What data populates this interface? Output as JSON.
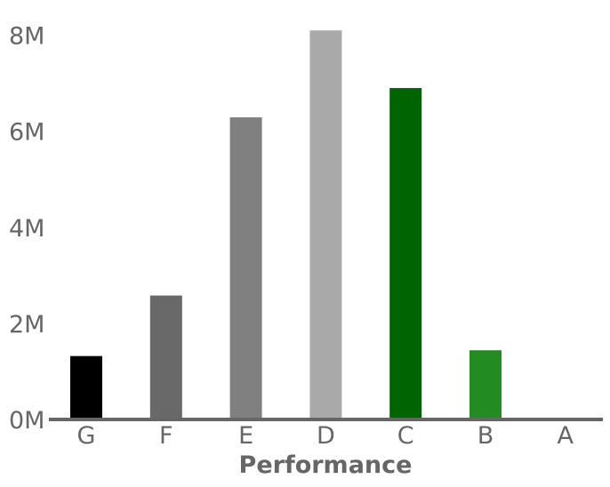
{
  "chart_data": {
    "type": "bar",
    "title": "",
    "xlabel": "Performance",
    "ylabel": "",
    "categories": [
      "G",
      "F",
      "E",
      "D",
      "C",
      "B",
      "A"
    ],
    "values": [
      1.32,
      2.58,
      6.29,
      8.1,
      6.9,
      1.44,
      0
    ],
    "value_unit": "M",
    "colors": [
      "#000000",
      "#696969",
      "#808080",
      "#a9a9a9",
      "#006400",
      "#228b22",
      "#32cd32"
    ],
    "ylim": [
      0,
      8.4
    ],
    "yticks": [
      0,
      2,
      4,
      6,
      8
    ],
    "ytick_labels": [
      "0M",
      "2M",
      "4M",
      "6M",
      "8M"
    ],
    "axis_color": "#666666",
    "grid": false,
    "legend": "none"
  }
}
